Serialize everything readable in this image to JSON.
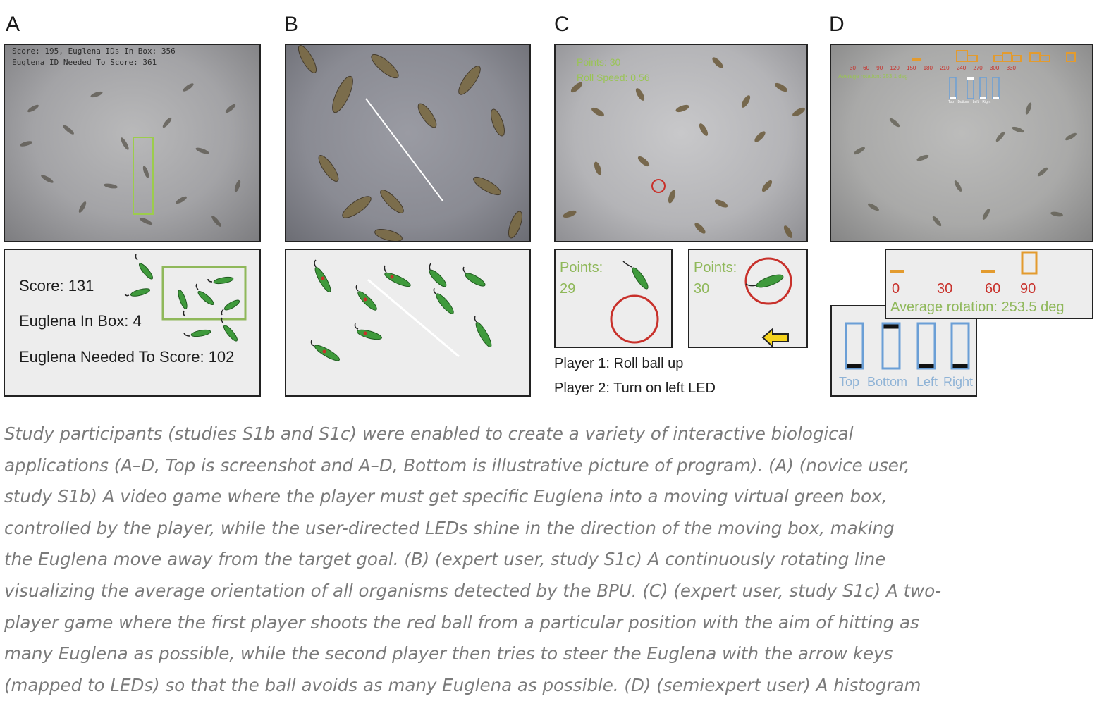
{
  "panels": {
    "a": {
      "label": "A",
      "overlay_line1": "Score: 195, Euglena IDs In Box: 356",
      "overlay_line2": "Euglena ID Needed To Score: 361",
      "score": "Score: 131",
      "in_box": "Euglena In Box: 4",
      "needed": "Euglena Needed To Score: 102"
    },
    "b": {
      "label": "B"
    },
    "c": {
      "label": "C",
      "overlay_points": "Points: 30",
      "overlay_speed": "Roll Speed: 0.56",
      "left_points_label": "Points:",
      "left_points_value": "29",
      "right_points_label": "Points:",
      "right_points_value": "30",
      "player1": "Player 1: Roll ball up",
      "player2": "Player 2: Turn on left LED"
    },
    "d": {
      "label": "D",
      "overlay_ticks": [
        "30",
        "60",
        "90",
        "120",
        "150",
        "180",
        "210",
        "240",
        "270",
        "300",
        "330"
      ],
      "overlay_rotation": "Average rotation: 253.1 deg",
      "overlay_leds": [
        "Top",
        "Bottom",
        "Left",
        "Right"
      ],
      "hist_ticks": [
        "0",
        "30",
        "60",
        "90"
      ],
      "hist_rotation": "Average rotation: 253.5 deg",
      "leds": [
        "Top",
        "Bottom",
        "Left",
        "Right"
      ]
    }
  },
  "caption_lines": [
    "Study participants (studies S1b and S1c) were enabled to create a variety of interactive biological",
    "applications (A–D, Top is screenshot and A–D, Bottom is illustrative picture of program). (A) (novice user,",
    "study S1b) A video game where the player must get specific Euglena into a moving virtual green box,",
    "controlled by the player, while the user-directed LEDs shine in the direction of the moving box, making",
    "the Euglena move away from the target goal. (B) (expert user, study S1c) A continuously rotating line",
    "visualizing the average orientation of all organisms detected by the BPU. (C) (expert user, study S1c) A two-",
    "player game where the first player shoots the red ball from a particular position with the aim of hitting as",
    "many Euglena as possible, while the second player then tries to steer the Euglena with the arrow keys",
    "(mapped to LEDs) so that the ball avoids as many Euglena as possible. (D) (semiexpert user) A histogram"
  ],
  "colors": {
    "euglena_green": "#3f9a3c",
    "box_green": "#8fb85a",
    "ball_red": "#c8312b",
    "histogram_orange": "#e39b2e",
    "led_blue": "#6b9fd6",
    "arrow_yellow": "#f5d31c"
  }
}
